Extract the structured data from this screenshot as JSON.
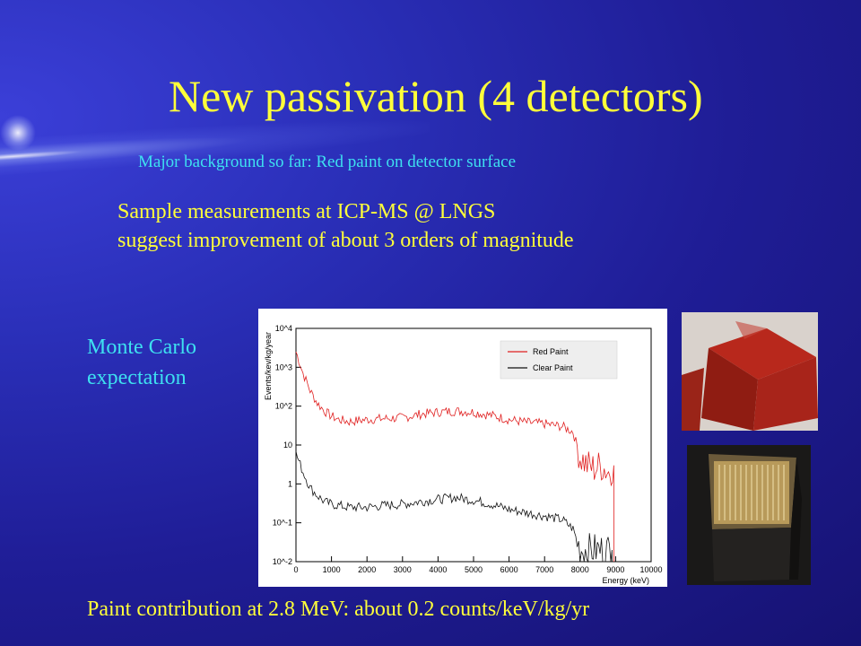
{
  "slide": {
    "title": "New passivation (4 detectors)",
    "subtitle": "Major background so far: Red paint on detector surface",
    "sample_line1": "Sample measurements at ICP-MS @ LNGS",
    "sample_line2": "suggest improvement of about 3 orders of magnitude",
    "mc_line1": "Monte Carlo",
    "mc_line2": "expectation",
    "footer": "Paint contribution at 2.8 MeV: about 0.2 counts/keV/kg/yr",
    "colors": {
      "title": "#ffff3a",
      "accent": "#3ee0f0",
      "background": "#1f1d96"
    }
  },
  "chart_data": {
    "type": "line",
    "xlabel": "Energy (keV)",
    "ylabel": "Events/kev/kg/year",
    "xlim": [
      0,
      10000
    ],
    "ylim": [
      0.01,
      10000
    ],
    "log_y": true,
    "x_ticks": [
      "0",
      "1000",
      "2000",
      "3000",
      "4000",
      "5000",
      "6000",
      "7000",
      "8000",
      "9000",
      "10000"
    ],
    "y_ticks": [
      "10^-2",
      "10^-1",
      "1",
      "10",
      "10^2",
      "10^3",
      "10^4"
    ],
    "legend_position": "top-right",
    "series": [
      {
        "name": "Red Paint",
        "color": "#e02020",
        "points": [
          [
            0,
            2500
          ],
          [
            200,
            700
          ],
          [
            400,
            250
          ],
          [
            600,
            120
          ],
          [
            800,
            75
          ],
          [
            1000,
            55
          ],
          [
            1200,
            45
          ],
          [
            1500,
            40
          ],
          [
            2000,
            45
          ],
          [
            2500,
            48
          ],
          [
            3000,
            50
          ],
          [
            3500,
            62
          ],
          [
            4000,
            70
          ],
          [
            4500,
            75
          ],
          [
            5000,
            70
          ],
          [
            5500,
            58
          ],
          [
            6000,
            45
          ],
          [
            6500,
            38
          ],
          [
            7000,
            35
          ],
          [
            7500,
            30
          ],
          [
            7800,
            22
          ],
          [
            8000,
            5
          ],
          [
            8200,
            3
          ],
          [
            8400,
            2.5
          ],
          [
            8600,
            3
          ],
          [
            8800,
            2
          ],
          [
            8950,
            3
          ]
        ]
      },
      {
        "name": "Clear Paint",
        "color": "#111111",
        "points": [
          [
            0,
            6
          ],
          [
            200,
            2
          ],
          [
            400,
            0.8
          ],
          [
            600,
            0.5
          ],
          [
            800,
            0.35
          ],
          [
            1000,
            0.3
          ],
          [
            1500,
            0.25
          ],
          [
            2000,
            0.25
          ],
          [
            2500,
            0.28
          ],
          [
            3000,
            0.3
          ],
          [
            3500,
            0.35
          ],
          [
            4000,
            0.4
          ],
          [
            4500,
            0.45
          ],
          [
            5000,
            0.38
          ],
          [
            5500,
            0.3
          ],
          [
            6000,
            0.22
          ],
          [
            6500,
            0.18
          ],
          [
            7000,
            0.15
          ],
          [
            7500,
            0.12
          ],
          [
            7800,
            0.07
          ],
          [
            8000,
            0.02
          ],
          [
            8300,
            0.02
          ],
          [
            8600,
            0.02
          ],
          [
            8900,
            0.02
          ]
        ]
      }
    ]
  },
  "photos": {
    "red_cube_icon": "red-painted-detector-photo",
    "chip_icon": "clear-detector-photo"
  }
}
